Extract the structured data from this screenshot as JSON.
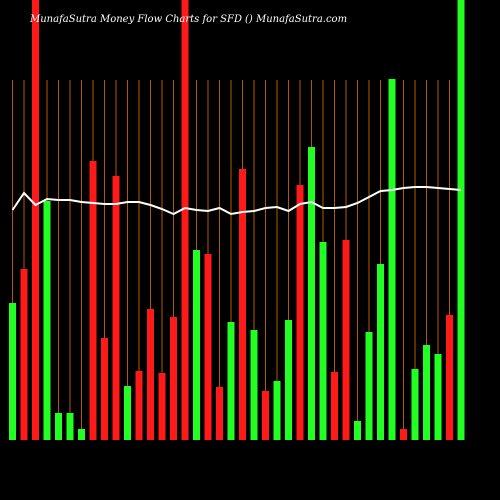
{
  "chart_data": {
    "type": "bar",
    "title": "MunafaSutra  Money Flow  Charts for SFD",
    "subtitle": "() MunafaSutra.com",
    "ylim": [
      0,
      440
    ],
    "grid_color": "#b35900",
    "line_color": "#ffffff",
    "values": [
      137,
      171,
      440,
      239,
      27,
      27,
      11,
      279,
      102,
      264,
      54,
      69,
      131,
      67,
      123,
      440,
      190,
      186,
      53,
      118,
      271,
      110,
      49,
      59,
      120,
      255,
      293,
      198,
      68,
      200,
      19,
      108,
      176,
      361,
      11,
      71,
      95,
      86,
      125,
      440
    ],
    "bar_colors": [
      "#22ff22",
      "#ff1a1a",
      "#ff1a1a",
      "#22ff22",
      "#22ff22",
      "#22ff22",
      "#22ff22",
      "#ff1a1a",
      "#ff1a1a",
      "#ff1a1a",
      "#22ff22",
      "#ff1a1a",
      "#ff1a1a",
      "#ff1a1a",
      "#ff1a1a",
      "#ff1a1a",
      "#22ff22",
      "#ff1a1a",
      "#ff1a1a",
      "#22ff22",
      "#ff1a1a",
      "#22ff22",
      "#ff1a1a",
      "#22ff22",
      "#22ff22",
      "#ff1a1a",
      "#22ff22",
      "#22ff22",
      "#ff1a1a",
      "#ff1a1a",
      "#22ff22",
      "#22ff22",
      "#22ff22",
      "#22ff22",
      "#ff1a1a",
      "#22ff22",
      "#22ff22",
      "#22ff22",
      "#ff1a1a",
      "#22ff22"
    ],
    "line_values": [
      230,
      247,
      235,
      241,
      240,
      240,
      238,
      237,
      236,
      236,
      238,
      238,
      235,
      231,
      226,
      232,
      230,
      229,
      232,
      226,
      228,
      229,
      232,
      233,
      229,
      236,
      238,
      232,
      232,
      233,
      237,
      243,
      249,
      250,
      252,
      253,
      253,
      252,
      251,
      250
    ]
  }
}
